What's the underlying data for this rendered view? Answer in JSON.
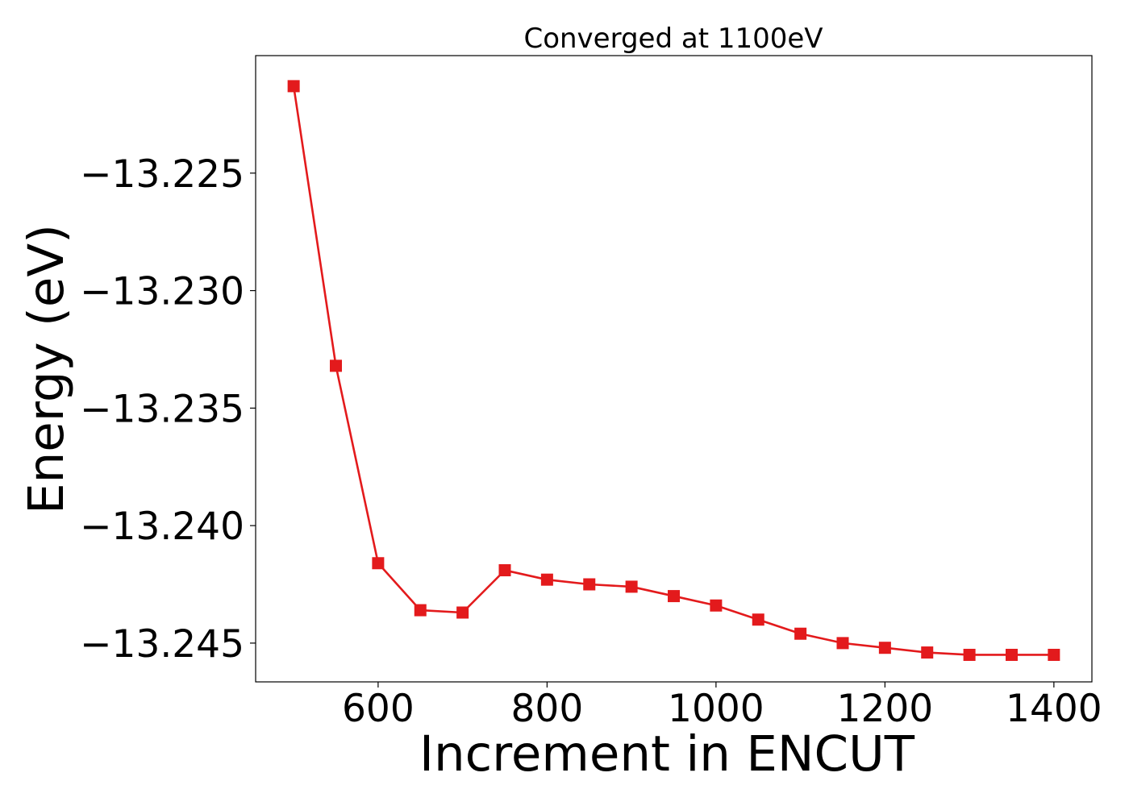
{
  "chart_data": {
    "type": "line",
    "title": "Converged at 1100eV",
    "xlabel": "Increment in ENCUT",
    "ylabel": "Energy (eV)",
    "xlim": [
      455,
      1445
    ],
    "ylim": [
      -13.24665,
      -13.22
    ],
    "x_ticks": [
      600,
      800,
      1000,
      1200,
      1400
    ],
    "x_tick_labels": [
      "600",
      "800",
      "1000",
      "1200",
      "1400"
    ],
    "y_ticks": [
      -13.225,
      -13.23,
      -13.235,
      -13.24,
      -13.245
    ],
    "y_tick_labels": [
      "−13.225",
      "−13.230",
      "−13.235",
      "−13.240",
      "−13.245"
    ],
    "grid": false,
    "legend": "none",
    "series": [
      {
        "color": "#e31a1c",
        "marker": "square",
        "x": [
          500,
          550,
          600,
          650,
          700,
          750,
          800,
          850,
          900,
          950,
          1000,
          1050,
          1100,
          1150,
          1200,
          1250,
          1300,
          1350,
          1400
        ],
        "y": [
          -13.2213,
          -13.2332,
          -13.2416,
          -13.2436,
          -13.2437,
          -13.2419,
          -13.2423,
          -13.2425,
          -13.2426,
          -13.243,
          -13.2434,
          -13.244,
          -13.2446,
          -13.245,
          -13.2452,
          -13.2454,
          -13.2455,
          -13.2455,
          -13.2455
        ]
      }
    ]
  }
}
